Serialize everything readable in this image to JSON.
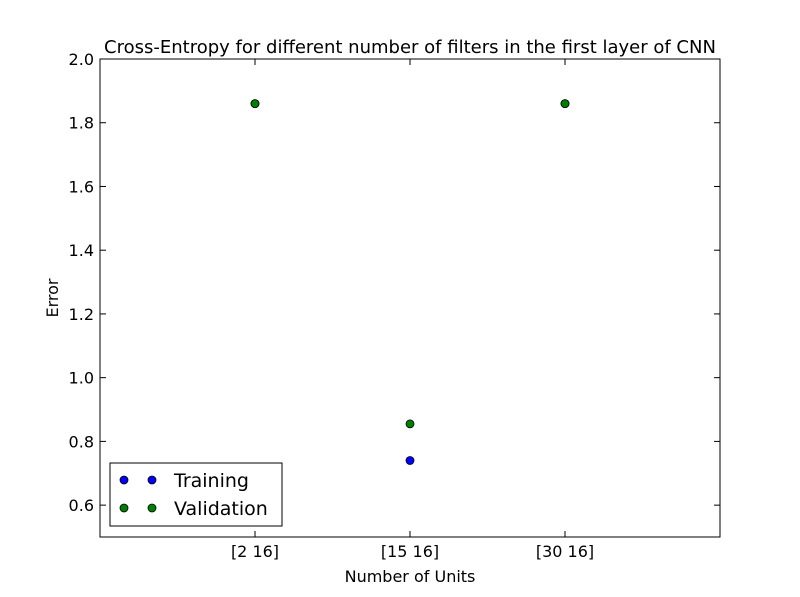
{
  "chart_data": {
    "type": "scatter",
    "title": "Cross-Entropy for different number of filters in the first layer of CNN",
    "xlabel": "Number of Units",
    "ylabel": "Error",
    "categories": [
      "[2 16]",
      "[15 16]",
      "[30 16]"
    ],
    "ylim": [
      0.5,
      2.0
    ],
    "yticks": [
      "0.6",
      "0.8",
      "1.0",
      "1.2",
      "1.4",
      "1.6",
      "1.8",
      "2.0"
    ],
    "legend_position": "lower-left",
    "series": [
      {
        "name": "Training",
        "color": "#0000ff",
        "values": [
          1.86,
          0.74,
          1.86
        ]
      },
      {
        "name": "Validation",
        "color": "#008000",
        "values": [
          1.86,
          0.855,
          1.86
        ]
      }
    ]
  }
}
